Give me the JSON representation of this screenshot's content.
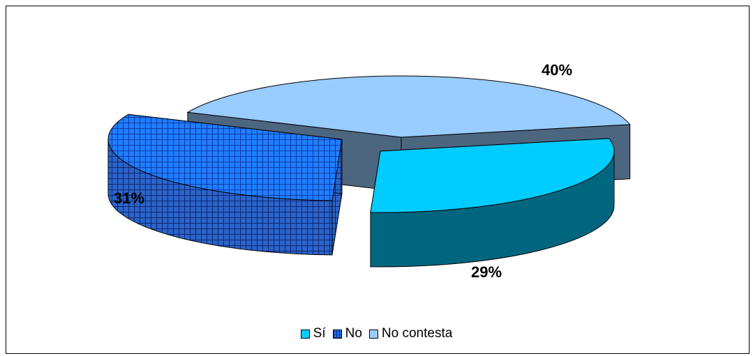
{
  "chart_data": {
    "type": "pie",
    "style": "3d-exploded",
    "categories": [
      "Sí",
      "No",
      "No contesta"
    ],
    "values": [
      29,
      31,
      40
    ],
    "value_labels": [
      "29%",
      "31%",
      "40%"
    ],
    "colors": {
      "Sí": "#00ccff",
      "No": "#0066ff",
      "No contesta": "#99ccff"
    },
    "side_colors": {
      "Sí": "#006680",
      "No": "#0033a0",
      "No contesta": "#4d6680"
    },
    "patterns": {
      "Sí": "solid",
      "No": "grid",
      "No contesta": "solid"
    },
    "legend_position": "bottom",
    "title": "",
    "xlabel": "",
    "ylabel": ""
  }
}
